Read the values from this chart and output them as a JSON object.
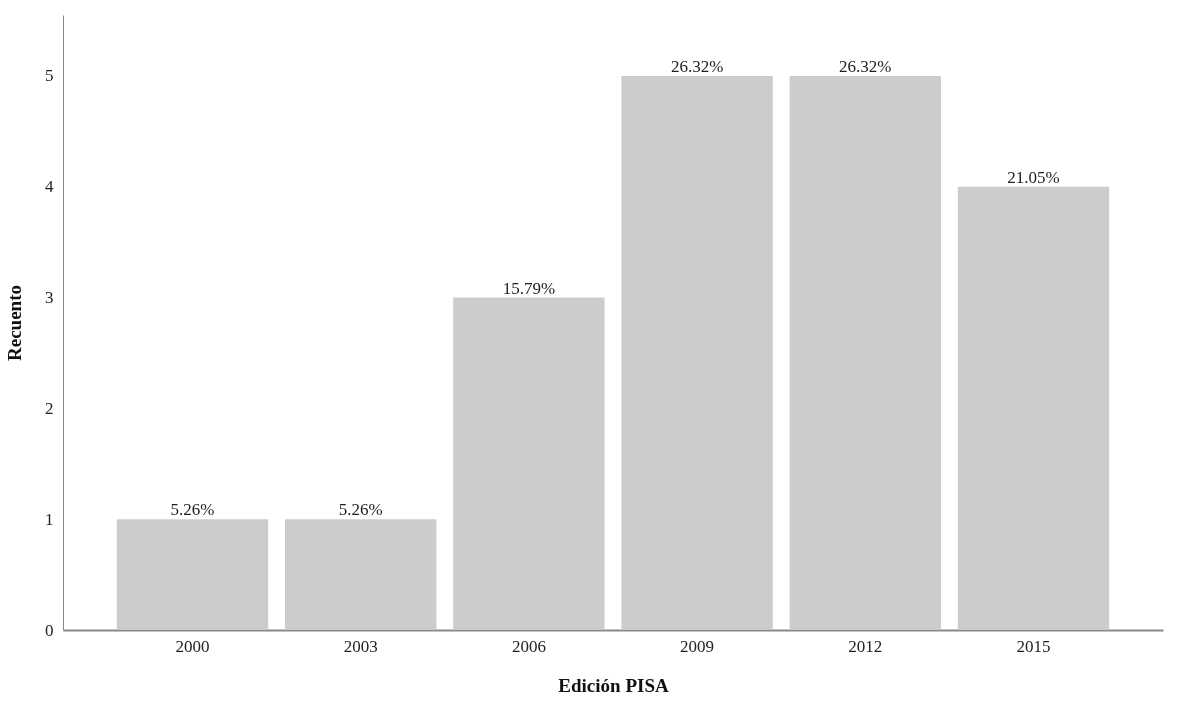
{
  "chart_data": {
    "type": "bar",
    "xlabel": "Edición PISA",
    "ylabel": "Recuento",
    "categories": [
      "2000",
      "2003",
      "2006",
      "2009",
      "2012",
      "2015"
    ],
    "values": [
      1,
      1,
      3,
      5,
      5,
      4
    ],
    "annotations": [
      {
        "text": "5.26%",
        "x": "2000",
        "y": 1
      },
      {
        "text": "5.26%",
        "x": "2003",
        "y": 1
      },
      {
        "text": "15.79%",
        "x": "2006",
        "y": 3
      },
      {
        "text": "26.32%",
        "x": "2009",
        "y": 5
      },
      {
        "text": "26.32%",
        "x": "2012",
        "y": 5
      },
      {
        "text": "21.05%",
        "x": "2015",
        "y": 4
      }
    ],
    "color": "#cccccc",
    "ylim": [
      0,
      5.55
    ],
    "yticks": [
      0,
      1,
      2,
      3,
      4,
      5
    ],
    "grid": false
  }
}
